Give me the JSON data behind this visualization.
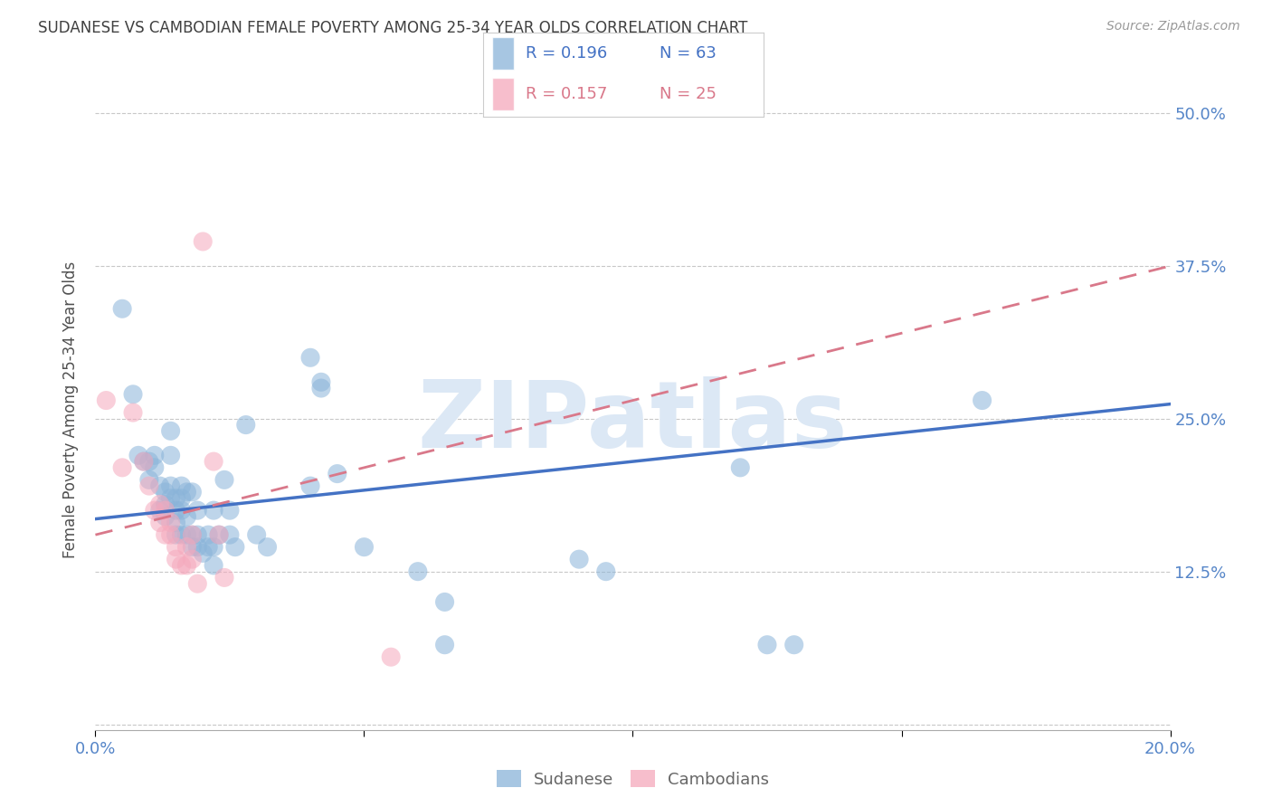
{
  "title": "SUDANESE VS CAMBODIAN FEMALE POVERTY AMONG 25-34 YEAR OLDS CORRELATION CHART",
  "source": "Source: ZipAtlas.com",
  "ylabel": "Female Poverty Among 25-34 Year Olds",
  "xlim": [
    0.0,
    0.2
  ],
  "ylim": [
    -0.005,
    0.52
  ],
  "ytick_vals": [
    0.0,
    0.125,
    0.25,
    0.375,
    0.5
  ],
  "ytick_labels": [
    "",
    "12.5%",
    "25.0%",
    "37.5%",
    "50.0%"
  ],
  "xtick_vals": [
    0.0,
    0.05,
    0.1,
    0.15,
    0.2
  ],
  "xtick_labels": [
    "0.0%",
    "",
    "",
    "",
    "20.0%"
  ],
  "bg_color": "#ffffff",
  "grid_color": "#c8c8c8",
  "sud_color": "#8ab4d9",
  "cam_color": "#f5a8bc",
  "sud_line_color": "#4472c4",
  "cam_line_color": "#d9788a",
  "axis_tick_color": "#5585c8",
  "title_color": "#404040",
  "watermark": "ZIPatlas",
  "watermark_color": "#dce8f5",
  "leg_R_sud": "R = 0.196",
  "leg_N_sud": "N = 63",
  "leg_R_cam": "R = 0.157",
  "leg_N_cam": "N = 25",
  "sud_pts": [
    [
      0.005,
      0.34
    ],
    [
      0.007,
      0.27
    ],
    [
      0.008,
      0.22
    ],
    [
      0.009,
      0.215
    ],
    [
      0.01,
      0.215
    ],
    [
      0.01,
      0.2
    ],
    [
      0.011,
      0.22
    ],
    [
      0.011,
      0.21
    ],
    [
      0.012,
      0.195
    ],
    [
      0.012,
      0.175
    ],
    [
      0.013,
      0.19
    ],
    [
      0.013,
      0.18
    ],
    [
      0.013,
      0.17
    ],
    [
      0.014,
      0.24
    ],
    [
      0.014,
      0.22
    ],
    [
      0.014,
      0.195
    ],
    [
      0.014,
      0.185
    ],
    [
      0.015,
      0.185
    ],
    [
      0.015,
      0.175
    ],
    [
      0.015,
      0.165
    ],
    [
      0.015,
      0.155
    ],
    [
      0.016,
      0.195
    ],
    [
      0.016,
      0.185
    ],
    [
      0.016,
      0.175
    ],
    [
      0.016,
      0.155
    ],
    [
      0.017,
      0.19
    ],
    [
      0.017,
      0.17
    ],
    [
      0.017,
      0.155
    ],
    [
      0.018,
      0.19
    ],
    [
      0.018,
      0.155
    ],
    [
      0.018,
      0.145
    ],
    [
      0.019,
      0.175
    ],
    [
      0.019,
      0.155
    ],
    [
      0.019,
      0.145
    ],
    [
      0.02,
      0.14
    ],
    [
      0.021,
      0.155
    ],
    [
      0.021,
      0.145
    ],
    [
      0.022,
      0.175
    ],
    [
      0.022,
      0.145
    ],
    [
      0.022,
      0.13
    ],
    [
      0.023,
      0.155
    ],
    [
      0.024,
      0.2
    ],
    [
      0.025,
      0.175
    ],
    [
      0.025,
      0.155
    ],
    [
      0.026,
      0.145
    ],
    [
      0.028,
      0.245
    ],
    [
      0.03,
      0.155
    ],
    [
      0.032,
      0.145
    ],
    [
      0.04,
      0.3
    ],
    [
      0.04,
      0.195
    ],
    [
      0.042,
      0.28
    ],
    [
      0.042,
      0.275
    ],
    [
      0.045,
      0.205
    ],
    [
      0.05,
      0.145
    ],
    [
      0.06,
      0.125
    ],
    [
      0.065,
      0.1
    ],
    [
      0.065,
      0.065
    ],
    [
      0.09,
      0.135
    ],
    [
      0.095,
      0.125
    ],
    [
      0.12,
      0.21
    ],
    [
      0.125,
      0.065
    ],
    [
      0.13,
      0.065
    ],
    [
      0.165,
      0.265
    ]
  ],
  "cam_pts": [
    [
      0.002,
      0.265
    ],
    [
      0.005,
      0.21
    ],
    [
      0.007,
      0.255
    ],
    [
      0.009,
      0.215
    ],
    [
      0.01,
      0.195
    ],
    [
      0.011,
      0.175
    ],
    [
      0.012,
      0.18
    ],
    [
      0.012,
      0.165
    ],
    [
      0.013,
      0.175
    ],
    [
      0.013,
      0.155
    ],
    [
      0.014,
      0.165
    ],
    [
      0.014,
      0.155
    ],
    [
      0.015,
      0.145
    ],
    [
      0.015,
      0.135
    ],
    [
      0.016,
      0.13
    ],
    [
      0.017,
      0.145
    ],
    [
      0.017,
      0.13
    ],
    [
      0.018,
      0.155
    ],
    [
      0.018,
      0.135
    ],
    [
      0.019,
      0.115
    ],
    [
      0.02,
      0.395
    ],
    [
      0.022,
      0.215
    ],
    [
      0.023,
      0.155
    ],
    [
      0.024,
      0.12
    ],
    [
      0.055,
      0.055
    ]
  ],
  "sud_trend_x": [
    0.0,
    0.2
  ],
  "sud_trend_y": [
    0.168,
    0.262
  ],
  "cam_trend_x": [
    0.0,
    0.2
  ],
  "cam_trend_y": [
    0.155,
    0.375
  ]
}
